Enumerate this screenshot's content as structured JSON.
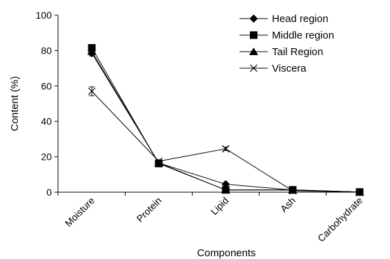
{
  "chart_data": {
    "type": "line",
    "title": "",
    "xlabel": "Components",
    "ylabel": "Content (%)",
    "categories": [
      "Moisture",
      "Protein",
      "Lipid",
      "Ash",
      "Carbohydrate"
    ],
    "ylim": [
      0,
      100
    ],
    "yticks": [
      "0",
      "20",
      "40",
      "60",
      "80",
      "100"
    ],
    "grid": false,
    "legend_position": "top-right",
    "series": [
      {
        "name": "Head region",
        "marker": "diamond",
        "values": [
          78.5,
          16.5,
          4.5,
          1.2,
          0.1
        ],
        "errors": [
          1.5,
          0.6,
          0.4,
          0.2,
          0.05
        ]
      },
      {
        "name": "Middle region",
        "marker": "square",
        "values": [
          81.5,
          16.2,
          1.3,
          1.3,
          0.1
        ],
        "errors": [
          1.2,
          0.6,
          0.3,
          0.2,
          0.05
        ]
      },
      {
        "name": "Tail Region",
        "marker": "triangle",
        "values": [
          79.5,
          16.5,
          1.2,
          1.2,
          0.1
        ],
        "errors": [
          1.5,
          0.6,
          0.3,
          0.2,
          0.05
        ]
      },
      {
        "name": "Viscera",
        "marker": "x",
        "values": [
          57.0,
          17.5,
          24.5,
          0.8,
          0.1
        ],
        "errors": [
          2.5,
          0.8,
          1.0,
          0.2,
          0.05
        ]
      }
    ],
    "colors": {
      "line": "#000000",
      "axis": "#000000"
    }
  }
}
